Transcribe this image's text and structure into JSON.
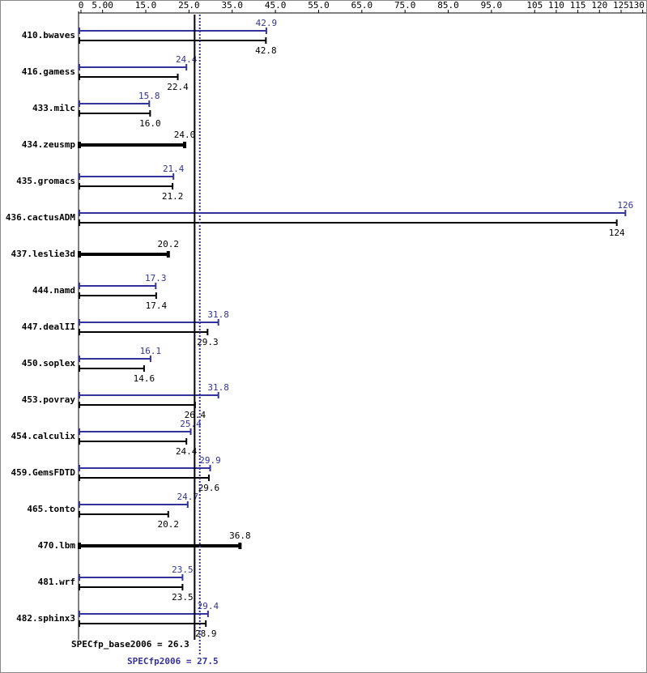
{
  "chart_data": {
    "type": "bar",
    "categories": [
      "410.bwaves",
      "416.gamess",
      "433.milc",
      "434.zeusmp",
      "435.gromacs",
      "436.cactusADM",
      "437.leslie3d",
      "444.namd",
      "447.dealII",
      "450.soplex",
      "453.povray",
      "454.calculix",
      "459.GemsFDTD",
      "465.tonto",
      "470.lbm",
      "481.wrf",
      "482.sphinx3"
    ],
    "series": [
      {
        "color": "#333399",
        "values": [
          42.9,
          24.4,
          15.8,
          null,
          21.4,
          126,
          null,
          17.3,
          31.8,
          16.1,
          31.8,
          25.4,
          29.9,
          24.7,
          null,
          23.5,
          29.4
        ]
      },
      {
        "color": "#000000",
        "values": [
          42.8,
          22.4,
          16,
          24,
          21.2,
          124,
          20.2,
          17.4,
          29.3,
          14.6,
          26.4,
          24.4,
          29.6,
          20.2,
          36.8,
          23.5,
          28.9
        ],
        "value_labels": [
          "42.8",
          "22.4",
          "16.0",
          "24.0",
          "21.2",
          "124",
          "20.2",
          "17.4",
          "29.3",
          "14.6",
          "26.4",
          "24.4",
          "29.6",
          "20.2",
          "36.8",
          "23.5",
          "28.9"
        ]
      }
    ],
    "xlim": [
      0,
      131
    ],
    "xticks": [
      0,
      {
        "value": 5,
        "label": "5.00"
      },
      {
        "value": 15,
        "label": "15.0"
      },
      {
        "value": 25,
        "label": "25.0"
      },
      {
        "value": 35,
        "label": "35.0"
      },
      {
        "value": 45,
        "label": "45.0"
      },
      {
        "value": 55,
        "label": "55.0"
      },
      {
        "value": 65,
        "label": "65.0"
      },
      {
        "value": 75,
        "label": "75.0"
      },
      {
        "value": 85,
        "label": "85.0"
      },
      {
        "value": 95,
        "label": "95.0"
      },
      105,
      110,
      115,
      120,
      125,
      130
    ],
    "reference_lines": [
      {
        "label": "SPECfp_base2006 = 26.3",
        "value": 26.3,
        "color": "#000000",
        "style": "solid"
      },
      {
        "label": "SPECfp2006 = 27.5",
        "value": 27.5,
        "color": "#333399",
        "style": "dotted"
      }
    ]
  }
}
